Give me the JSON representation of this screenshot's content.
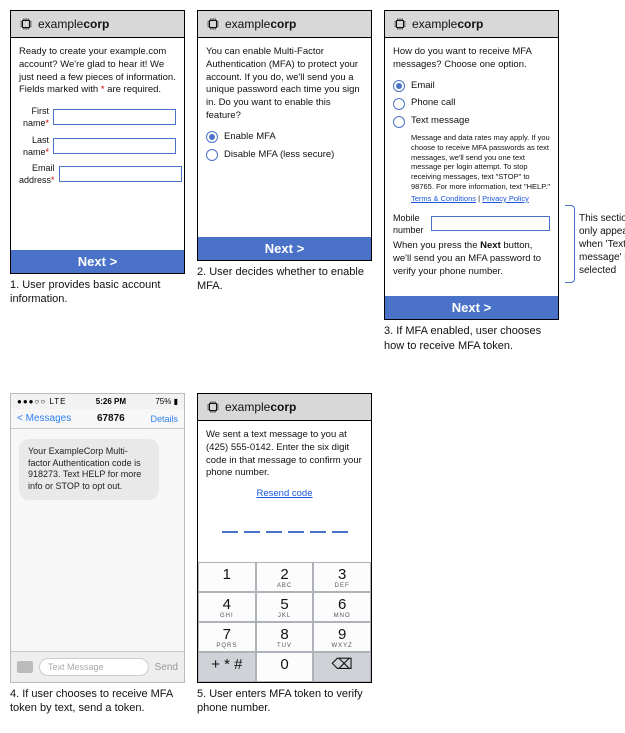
{
  "brand": {
    "prefix": "example",
    "suffix": "corp"
  },
  "colors": {
    "accent": "#4a72c8",
    "header_bg": "#d8d8d8",
    "link": "#1a56db",
    "required": "#d00000"
  },
  "nextLabel": "Next >",
  "panel1": {
    "intro": "Ready to create your example.com account? We're glad to hear it! We just need a few pieces of information. Fields marked with * are required.",
    "fields": {
      "first": "First name",
      "last": "Last name",
      "email": "Email address"
    }
  },
  "panel2": {
    "intro": "You can enable Multi-Factor Authentication (MFA) to protect your account. If you do, we'll send you a unique password each time you sign in. Do you want to enable this feature?",
    "opt_enable": "Enable MFA",
    "opt_disable": "Disable MFA (less secure)"
  },
  "panel3": {
    "intro": "How do you want to receive MFA messages? Choose one option.",
    "opt_email": "Email",
    "opt_phone": "Phone call",
    "opt_text": "Text message",
    "fineprint": "Message and data rates may apply. If you choose to receive MFA passwords as text messages, we'll send you one text message per login attempt. To stop receiving messages, text \"STOP\" to 98765. For more information, text \"HELP.\"",
    "terms": "Terms & Conditions",
    "privacy": "Privacy Policy",
    "mobile_label": "Mobile number",
    "confirm": "When you press the Next button, we'll send you an MFA password to verify your phone number."
  },
  "panel4": {
    "carrier": "LTE",
    "time": "5:26 PM",
    "battery": "75%",
    "back": "Messages",
    "title": "67876",
    "details": "Details",
    "bubble": "Your ExampleCorp Multi-factor Authentication code is 918273. Text HELP for more info or STOP to opt out.",
    "placeholder": "Text Message",
    "send": "Send"
  },
  "panel5": {
    "intro": "We sent a text message to you at (425) 555-0142. Enter the six digit code in that message to confirm your phone number.",
    "resend": "Resend code",
    "keys": [
      {
        "n": "1",
        "l": ""
      },
      {
        "n": "2",
        "l": "ABC"
      },
      {
        "n": "3",
        "l": "DEF"
      },
      {
        "n": "4",
        "l": "GHI"
      },
      {
        "n": "5",
        "l": "JKL"
      },
      {
        "n": "6",
        "l": "MNO"
      },
      {
        "n": "7",
        "l": "PQRS"
      },
      {
        "n": "8",
        "l": "TUV"
      },
      {
        "n": "9",
        "l": "WXYZ"
      },
      {
        "n": "+ * #",
        "l": "",
        "gray": true
      },
      {
        "n": "0",
        "l": ""
      },
      {
        "n": "⌫",
        "l": "",
        "gray": true
      }
    ]
  },
  "captions": {
    "c1": "1. User provides basic account information.",
    "c2": "2. User decides whether to enable MFA.",
    "c3": "3. If MFA enabled, user chooses how to receive MFA token.",
    "c4": "4. If user chooses to receive MFA token by text, send a token.",
    "c5": "5. User enters MFA token to verify phone number."
  },
  "annotation": "This section only appears when 'Text message' is selected"
}
